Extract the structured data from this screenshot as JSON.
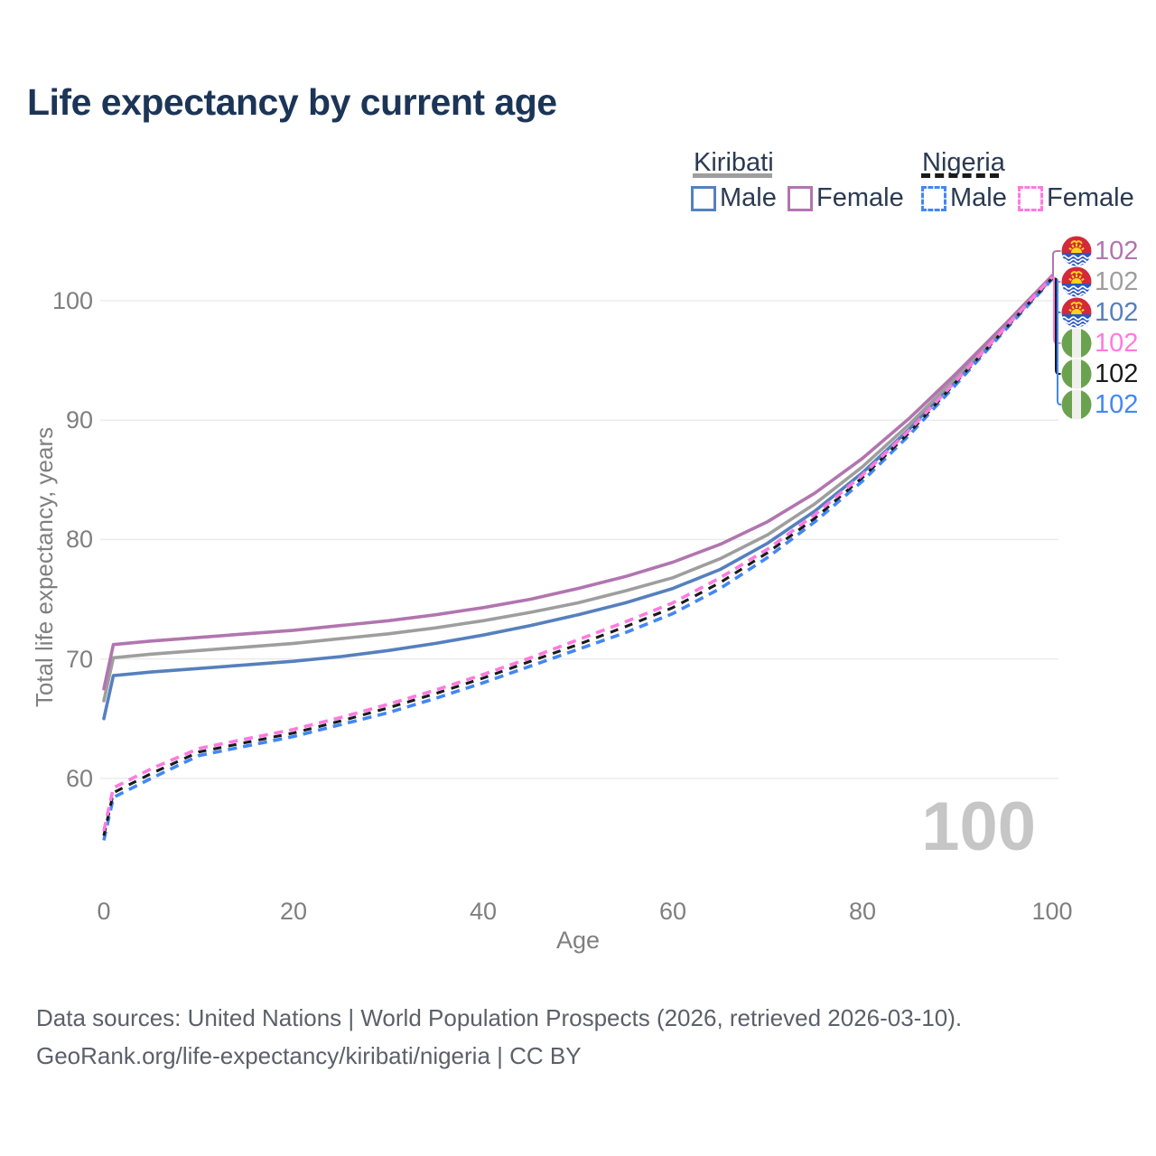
{
  "title": "Life expectancy by current age",
  "legend": {
    "groups": [
      {
        "name": "Kiribati",
        "line_style": "solid",
        "underline_color": "#9e9e9e",
        "items": [
          {
            "label": "Male",
            "color": "#5580BE",
            "dashed": false
          },
          {
            "label": "Female",
            "color": "#B175AF",
            "dashed": false
          }
        ]
      },
      {
        "name": "Nigeria",
        "line_style": "dashed",
        "underline_color": "#1a1a1a",
        "items": [
          {
            "label": "Male",
            "color": "#4287F5",
            "dashed": true
          },
          {
            "label": "Female",
            "color": "#FF7ADF",
            "dashed": true
          }
        ]
      }
    ]
  },
  "watermark": "100",
  "footer": {
    "line1": "Data sources: United Nations | World Population Prospects (2026, retrieved 2026-03-10).",
    "line2": "GeoRank.org/life-expectancy/kiribati/nigeria | CC BY"
  },
  "chart_data": {
    "type": "line",
    "title": "Life expectancy by current age",
    "xlabel": "Age",
    "ylabel": "Total life expectancy, years",
    "x_ticks": [
      0,
      20,
      40,
      60,
      80,
      100
    ],
    "y_ticks": [
      60,
      70,
      80,
      90,
      100
    ],
    "xlim": [
      0,
      100
    ],
    "ylim": [
      54,
      104
    ],
    "grid": "horizontal",
    "x": [
      0,
      1,
      5,
      10,
      15,
      20,
      25,
      30,
      35,
      40,
      45,
      50,
      55,
      60,
      65,
      70,
      75,
      80,
      85,
      90,
      95,
      100
    ],
    "series": [
      {
        "name": "Kiribati Female",
        "country": "Kiribati",
        "sex": "Female",
        "color": "#B175AF",
        "dashed": false,
        "end_label": "102",
        "flag": "kiribati",
        "values": [
          67.5,
          71.2,
          71.5,
          71.8,
          72.1,
          72.4,
          72.8,
          73.2,
          73.7,
          74.3,
          75.0,
          75.9,
          76.9,
          78.1,
          79.6,
          81.5,
          83.9,
          86.8,
          90.2,
          94.0,
          98.0,
          102.1
        ]
      },
      {
        "name": "Kiribati Both sexes",
        "country": "Kiribati",
        "sex": "Both",
        "color": "#9E9E9E",
        "dashed": false,
        "end_label": "102",
        "flag": "kiribati",
        "values": [
          66.5,
          70.1,
          70.4,
          70.7,
          71.0,
          71.3,
          71.7,
          72.1,
          72.6,
          73.2,
          73.9,
          74.7,
          75.7,
          76.8,
          78.4,
          80.4,
          83.0,
          86.1,
          89.7,
          93.7,
          97.9,
          102.0
        ]
      },
      {
        "name": "Kiribati Male",
        "country": "Kiribati",
        "sex": "Male",
        "color": "#5580BE",
        "dashed": false,
        "end_label": "102",
        "flag": "kiribati",
        "values": [
          65.0,
          68.6,
          68.9,
          69.2,
          69.5,
          69.8,
          70.2,
          70.7,
          71.3,
          72.0,
          72.8,
          73.7,
          74.7,
          75.9,
          77.5,
          79.7,
          82.4,
          85.6,
          89.3,
          93.5,
          97.7,
          101.9
        ]
      },
      {
        "name": "Nigeria Female",
        "country": "Nigeria",
        "sex": "Female",
        "color": "#FF7ADF",
        "dashed": true,
        "end_label": "102",
        "flag": "nigeria",
        "values": [
          55.6,
          59.2,
          60.8,
          62.5,
          63.3,
          64.1,
          65.1,
          66.2,
          67.4,
          68.7,
          70.1,
          71.6,
          73.1,
          74.7,
          76.8,
          79.2,
          82.1,
          85.4,
          89.2,
          93.4,
          97.7,
          102.0
        ]
      },
      {
        "name": "Nigeria Both sexes",
        "country": "Nigeria",
        "sex": "Both",
        "color": "#1A1A1A",
        "dashed": true,
        "end_label": "102",
        "flag": "nigeria",
        "values": [
          55.2,
          58.8,
          60.4,
          62.2,
          63.0,
          63.8,
          64.8,
          65.9,
          67.1,
          68.4,
          69.8,
          71.2,
          72.7,
          74.3,
          76.4,
          78.9,
          81.8,
          85.2,
          89.0,
          93.3,
          97.6,
          101.9
        ]
      },
      {
        "name": "Nigeria Male",
        "country": "Nigeria",
        "sex": "Male",
        "color": "#4287F5",
        "dashed": true,
        "end_label": "102",
        "flag": "nigeria",
        "values": [
          54.8,
          58.4,
          60.0,
          61.9,
          62.7,
          63.5,
          64.5,
          65.5,
          66.7,
          68.0,
          69.4,
          70.8,
          72.2,
          73.8,
          75.9,
          78.5,
          81.5,
          84.9,
          88.8,
          93.1,
          97.5,
          101.8
        ]
      }
    ]
  }
}
